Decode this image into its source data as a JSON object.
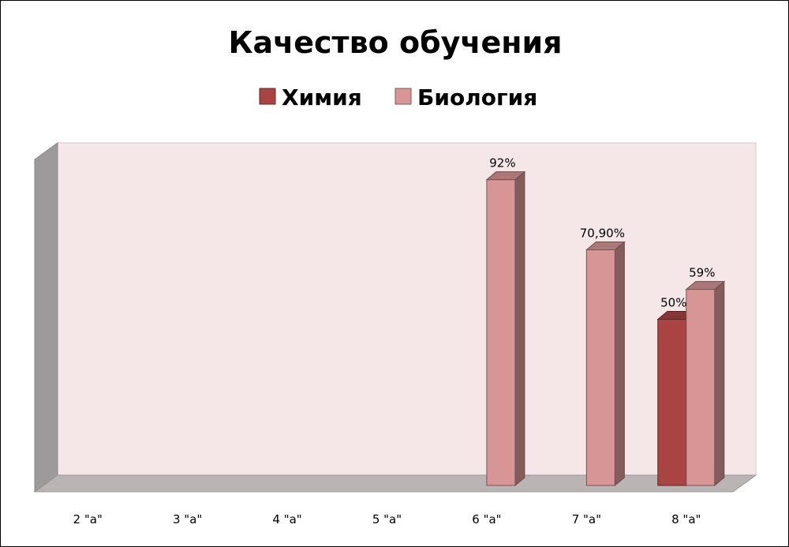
{
  "chart_data": {
    "type": "bar",
    "title": "Качество обучения",
    "xlabel": "",
    "ylabel": "",
    "categories": [
      "2 \"а\"",
      "3 \"а\"",
      "4 \"а\"",
      "5 \"а\"",
      "6 \"а\"",
      "7 \"а\"",
      "8 \"а\""
    ],
    "series": [
      {
        "name": "Химия",
        "color": "#a94442",
        "values": [
          null,
          null,
          null,
          null,
          null,
          null,
          50
        ],
        "labels": [
          "",
          "",
          "",
          "",
          "",
          "",
          "50%"
        ]
      },
      {
        "name": "Биология",
        "color": "#d79595",
        "values": [
          null,
          null,
          null,
          null,
          92,
          70.9,
          59
        ],
        "labels": [
          "",
          "",
          "",
          "",
          "92%",
          "70,90%",
          "59%"
        ]
      }
    ],
    "ylim": [
      0,
      100
    ],
    "grid": false,
    "legend_position": "top",
    "three_d": true,
    "plot_background": "#f5e6e8"
  }
}
